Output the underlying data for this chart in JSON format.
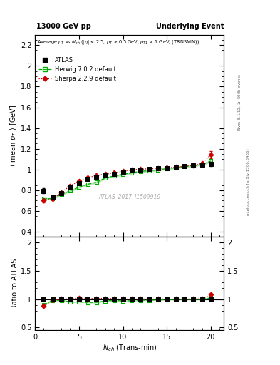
{
  "title_left": "13000 GeV pp",
  "title_right": "Underlying Event",
  "panel_title": "Average $p_T$ vs $N_{ch}$ ($|\\eta|$ < 2.5, $p_T$ > 0.5 GeV, $p_{T1}$ > 1 GeV, (TRNSMIN))",
  "ylabel_main": "$\\langle$ mean $p_T$ $\\rangle$ [GeV]",
  "ylabel_ratio": "Ratio to ATLAS",
  "xlabel": "$N_{ch}$ (Trans-min)",
  "watermark": "ATLAS_2017_I1509919",
  "rivet_label": "Rivet 3.1.10, $\\geq$ 500k events",
  "mcplots_label": "mcplots.cern.ch [arXiv:1306.3436]",
  "ylim_main": [
    0.35,
    2.3
  ],
  "ylim_ratio": [
    0.45,
    2.1
  ],
  "xlim": [
    0.0,
    21.5
  ],
  "yticks_main": [
    0.4,
    0.6,
    0.8,
    1.0,
    1.2,
    1.4,
    1.6,
    1.8,
    2.0,
    2.2
  ],
  "yticks_ratio": [
    0.5,
    1.0,
    1.5,
    2.0
  ],
  "xticks": [
    0,
    5,
    10,
    15,
    20
  ],
  "atlas_x": [
    1,
    2,
    3,
    4,
    5,
    6,
    7,
    8,
    9,
    10,
    11,
    12,
    13,
    14,
    15,
    16,
    17,
    18,
    19,
    20
  ],
  "atlas_y": [
    0.795,
    0.735,
    0.775,
    0.835,
    0.87,
    0.91,
    0.93,
    0.945,
    0.96,
    0.98,
    0.995,
    1.0,
    1.005,
    1.01,
    1.015,
    1.02,
    1.03,
    1.04,
    1.05,
    1.055
  ],
  "atlas_yerr": [
    0.022,
    0.015,
    0.012,
    0.01,
    0.01,
    0.01,
    0.01,
    0.01,
    0.01,
    0.01,
    0.01,
    0.01,
    0.01,
    0.01,
    0.01,
    0.01,
    0.01,
    0.01,
    0.012,
    0.02
  ],
  "herwig_x": [
    1,
    2,
    3,
    4,
    5,
    6,
    7,
    8,
    9,
    10,
    11,
    12,
    13,
    14,
    15,
    16,
    17,
    18,
    19,
    20
  ],
  "herwig_y": [
    0.718,
    0.72,
    0.76,
    0.795,
    0.83,
    0.858,
    0.878,
    0.918,
    0.938,
    0.953,
    0.968,
    0.983,
    0.988,
    0.998,
    1.008,
    1.018,
    1.028,
    1.038,
    1.048,
    1.082
  ],
  "herwig_band_lo": [
    0.708,
    0.71,
    0.75,
    0.785,
    0.82,
    0.848,
    0.868,
    0.908,
    0.928,
    0.943,
    0.958,
    0.973,
    0.978,
    0.988,
    0.998,
    1.008,
    1.018,
    1.028,
    1.038,
    1.072
  ],
  "herwig_band_hi": [
    0.728,
    0.73,
    0.77,
    0.805,
    0.84,
    0.868,
    0.888,
    0.928,
    0.948,
    0.963,
    0.978,
    0.993,
    0.998,
    1.008,
    1.018,
    1.028,
    1.038,
    1.048,
    1.058,
    1.092
  ],
  "sherpa_x": [
    1,
    2,
    3,
    4,
    5,
    6,
    7,
    8,
    9,
    10,
    11,
    12,
    13,
    14,
    15,
    16,
    17,
    18,
    19,
    20
  ],
  "sherpa_y": [
    0.7,
    0.718,
    0.778,
    0.843,
    0.888,
    0.922,
    0.942,
    0.958,
    0.968,
    0.983,
    0.998,
    1.003,
    1.008,
    1.013,
    1.018,
    1.023,
    1.033,
    1.043,
    1.058,
    1.143
  ],
  "sherpa_yerr": [
    0.018,
    0.012,
    0.01,
    0.01,
    0.01,
    0.01,
    0.01,
    0.01,
    0.01,
    0.01,
    0.01,
    0.01,
    0.01,
    0.01,
    0.01,
    0.01,
    0.01,
    0.01,
    0.018,
    0.032
  ],
  "herwig_ratio_y": [
    0.903,
    0.98,
    0.981,
    0.952,
    0.954,
    0.943,
    0.944,
    0.971,
    0.977,
    0.972,
    0.973,
    0.983,
    0.983,
    0.988,
    0.993,
    0.998,
    0.998,
    0.998,
    0.998,
    1.025
  ],
  "herwig_ratio_band_lo": [
    0.89,
    0.967,
    0.968,
    0.94,
    0.943,
    0.932,
    0.933,
    0.961,
    0.967,
    0.962,
    0.963,
    0.973,
    0.973,
    0.978,
    0.983,
    0.988,
    0.988,
    0.988,
    0.988,
    1.015
  ],
  "herwig_ratio_band_hi": [
    0.916,
    0.993,
    0.994,
    0.964,
    0.965,
    0.954,
    0.955,
    0.981,
    0.987,
    0.982,
    0.983,
    0.993,
    0.993,
    0.998,
    1.003,
    1.008,
    1.008,
    1.008,
    1.008,
    1.035
  ],
  "sherpa_ratio_y": [
    0.88,
    0.978,
    1.004,
    1.01,
    1.021,
    1.013,
    1.013,
    1.014,
    1.008,
    1.003,
    1.003,
    1.003,
    1.003,
    1.003,
    1.003,
    1.003,
    1.003,
    1.003,
    1.008,
    1.082
  ],
  "sherpa_ratio_yerr": [
    0.022,
    0.016,
    0.013,
    0.012,
    0.012,
    0.011,
    0.011,
    0.011,
    0.01,
    0.01,
    0.01,
    0.01,
    0.01,
    0.01,
    0.01,
    0.01,
    0.01,
    0.01,
    0.018,
    0.03
  ],
  "atlas_color": "#000000",
  "herwig_color": "#00aa00",
  "sherpa_color": "#cc0000",
  "bg_color": "#ffffff"
}
